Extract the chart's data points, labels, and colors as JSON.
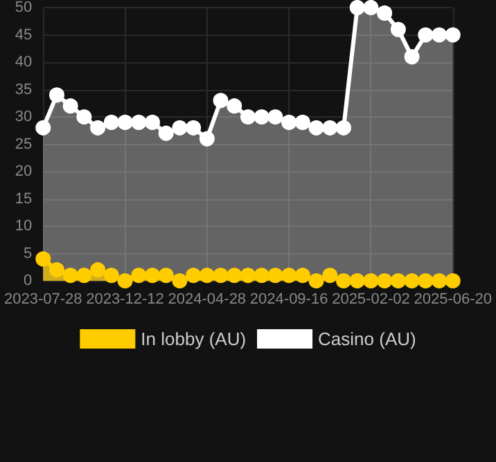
{
  "chart_data": {
    "type": "area",
    "categories": [
      "2023-07-28",
      null,
      null,
      null,
      null,
      null,
      "2023-12-12",
      null,
      null,
      null,
      null,
      null,
      "2024-04-28",
      null,
      null,
      null,
      null,
      null,
      "2024-09-16",
      null,
      null,
      null,
      null,
      null,
      "2025-02-02",
      null,
      null,
      null,
      null,
      null,
      "2025-06-20"
    ],
    "series": [
      {
        "name": "In lobby (AU)",
        "color": "#ffcc00",
        "values": [
          4,
          2,
          1,
          1,
          2,
          1,
          0,
          1,
          1,
          1,
          0,
          1,
          1,
          1,
          1,
          1,
          1,
          1,
          1,
          1,
          0,
          1,
          0,
          0,
          0,
          0,
          0,
          0,
          0,
          0,
          0
        ]
      },
      {
        "name": "Casino (AU)",
        "color": "#ffffff",
        "values": [
          28,
          34,
          32,
          30,
          28,
          29,
          29,
          29,
          29,
          27,
          28,
          28,
          26,
          33,
          32,
          30,
          30,
          30,
          29,
          29,
          28,
          28,
          28,
          50,
          50,
          49,
          46,
          41,
          45,
          45,
          45
        ]
      }
    ],
    "ylim": [
      0,
      50
    ],
    "yticks": [
      0,
      5,
      10,
      15,
      20,
      25,
      30,
      35,
      40,
      45,
      50
    ],
    "grid": true,
    "legend": "bottom",
    "marker": "circle"
  }
}
